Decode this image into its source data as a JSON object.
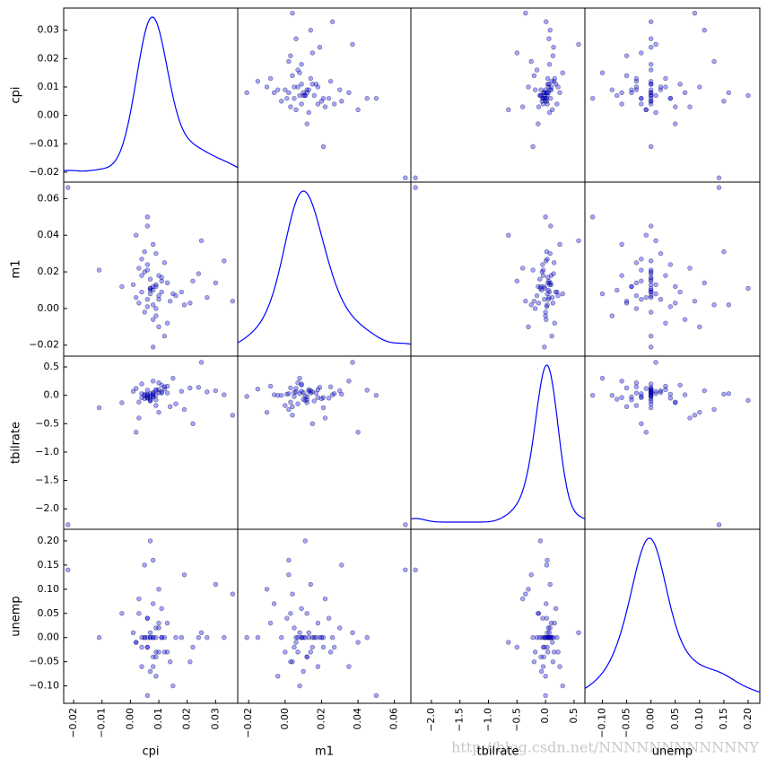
{
  "chart_data": {
    "type": "scatter_matrix",
    "color": "#0000ff",
    "watermark": "http://blog.csdn.net/NNNNNNNNNNNNY",
    "variables": [
      {
        "name": "cpi",
        "lim": [
          -0.0235,
          0.0378
        ],
        "ticks": [
          {
            "value": -0.02,
            "label": "−0.02"
          },
          {
            "value": -0.01,
            "label": "−0.01"
          },
          {
            "value": 0,
            "label": "0.00"
          },
          0.01,
          0.02,
          0.03
        ],
        "values": [
          -0.022,
          0.008,
          0.006,
          0.01,
          0.005,
          0.009,
          0.007,
          0.012,
          0.003,
          0.011,
          0.006,
          0.008,
          0.004,
          0.014,
          0.009,
          0.007,
          0.002,
          0.01,
          0.013,
          0.005,
          0.006,
          0.008,
          0.016,
          0.001,
          0.009,
          0.007,
          0.011,
          0.004,
          0.019,
          0.006,
          0.008,
          0.01,
          0.003,
          0.012,
          0.007,
          0.024,
          0.005,
          0.009,
          0.027,
          0.006,
          0.015,
          0.008,
          0.03,
          0.002,
          0.011,
          0.021,
          0.007,
          0.033,
          0.01,
          -0.003,
          0.018,
          0.006,
          0.036,
          0.009,
          0.025,
          0.004,
          0.013,
          -0.011,
          0.008,
          0.022
        ]
      },
      {
        "name": "m1",
        "lim": [
          -0.026,
          0.069
        ],
        "ticks": [
          {
            "value": -0.02,
            "label": "−0.02"
          },
          {
            "value": 0,
            "label": "0.00"
          },
          0.02,
          0.04,
          0.06
        ],
        "values": [
          0.066,
          0.01,
          0.005,
          0.018,
          -0.002,
          0.012,
          0.008,
          0.025,
          0.003,
          0.015,
          0.021,
          -0.006,
          0.009,
          0.004,
          0.03,
          0.011,
          0.006,
          -0.01,
          0.014,
          0.02,
          0.001,
          0.035,
          0.007,
          0.013,
          -0.004,
          0.016,
          0.009,
          0.027,
          0.002,
          0.045,
          0.012,
          0.005,
          0.022,
          -0.015,
          0.01,
          0.019,
          0.031,
          0.0,
          0.006,
          0.024,
          0.008,
          -0.021,
          0.014,
          0.04,
          0.017,
          0.003,
          0.011,
          0.026,
          0.007,
          0.012,
          0.009,
          0.05,
          0.004,
          0.013,
          0.037,
          0.018,
          -0.008,
          0.021,
          0.002,
          0.015
        ]
      },
      {
        "name": "tbilrate",
        "lim": [
          -2.36,
          0.69
        ],
        "ticks": [
          {
            "value": -2,
            "label": "−2.0"
          },
          {
            "value": -1.5,
            "label": "−1.5"
          },
          {
            "value": -1,
            "label": "−1.0"
          },
          {
            "value": -0.5,
            "label": "−0.5"
          },
          {
            "value": 0,
            "label": "0.0"
          },
          0.5
        ],
        "values": [
          -2.28,
          0.05,
          -0.02,
          0.1,
          0.0,
          -0.08,
          0.03,
          0.15,
          -0.12,
          0.06,
          -0.04,
          0.01,
          0.2,
          -0.2,
          0.08,
          -0.01,
          0.12,
          -0.3,
          0.04,
          -0.06,
          0.02,
          0.25,
          -0.15,
          0.07,
          0.0,
          -0.1,
          0.18,
          0.03,
          -0.25,
          0.09,
          -0.03,
          0.05,
          -0.4,
          0.11,
          -0.07,
          0.14,
          0.02,
          -0.18,
          0.06,
          -0.05,
          0.3,
          -0.02,
          0.08,
          -0.65,
          0.04,
          0.13,
          -0.09,
          0.01,
          0.22,
          -0.13,
          0.07,
          0.0,
          -0.35,
          0.1,
          0.58,
          -0.04,
          0.16,
          -0.22,
          0.03,
          -0.5
        ]
      },
      {
        "name": "unemp",
        "lim": [
          -0.136,
          0.224
        ],
        "ticks": [
          {
            "value": -0.1,
            "label": "−0.10"
          },
          {
            "value": -0.05,
            "label": "−0.05"
          },
          {
            "value": 0,
            "label": "0.00"
          },
          0.05,
          {
            "value": 0.1,
            "label": "0.10"
          },
          0.15,
          {
            "value": 0.2,
            "label": "0.20"
          }
        ],
        "values": [
          0.14,
          0.0,
          -0.02,
          0.03,
          0.0,
          -0.04,
          0.01,
          -0.03,
          0.05,
          0.0,
          -0.02,
          0.07,
          0.0,
          -0.05,
          0.02,
          0.0,
          -0.01,
          0.1,
          -0.03,
          0.0,
          0.04,
          -0.06,
          0.0,
          0.01,
          -0.08,
          0.0,
          0.06,
          -0.02,
          0.13,
          0.0,
          -0.04,
          0.02,
          0.08,
          0.0,
          -0.07,
          0.0,
          0.15,
          -0.03,
          0.0,
          0.04,
          -0.1,
          0.0,
          0.11,
          -0.01,
          0.0,
          -0.05,
          0.2,
          0.0,
          -0.03,
          0.05,
          0.0,
          -0.12,
          0.09,
          0.0,
          0.01,
          -0.06,
          0.03,
          0.0,
          0.16,
          -0.02
        ]
      }
    ]
  }
}
